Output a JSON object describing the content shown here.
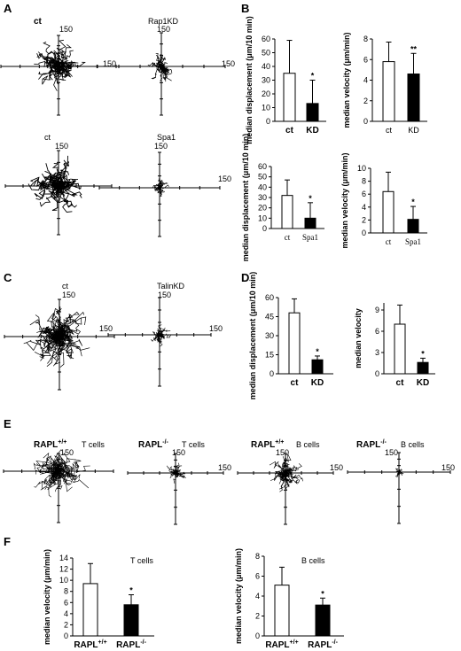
{
  "panels": {
    "A": {
      "letter": "A",
      "plots": [
        {
          "title": "ct",
          "axis_label_top": "150",
          "axis_label_right": "150"
        },
        {
          "title": "Rap1KD",
          "axis_label_top": "150",
          "axis_label_right": "150"
        },
        {
          "title": "ct",
          "axis_label_top": "150",
          "axis_label_right": ""
        },
        {
          "title": "Spa1",
          "axis_label_top": "150",
          "axis_label_right": "150"
        }
      ]
    },
    "B": {
      "letter": "B"
    },
    "C": {
      "letter": "C",
      "plots": [
        {
          "title": "ct",
          "axis_label_top": "150",
          "axis_label_right": "150"
        },
        {
          "title": "TalinKD",
          "axis_label_top": "150",
          "axis_label_right": "150"
        }
      ]
    },
    "D": {
      "letter": "D"
    },
    "E": {
      "letter": "E",
      "plots": [
        {
          "title_main": "RAPL",
          "title_sup": "+/+",
          "title_tail": "T cells",
          "axis_label_top": "150",
          "axis_label_right": ""
        },
        {
          "title_main": "RAPL",
          "title_sup": "-/-",
          "title_tail": "T cells",
          "axis_label_top": "150",
          "axis_label_right": "150"
        },
        {
          "title_main": "RAPL",
          "title_sup": "+/+",
          "title_tail": "B cells",
          "axis_label_top": "150",
          "axis_label_right": "150"
        },
        {
          "title_main": "RAPL",
          "title_sup": "-/-",
          "title_tail": "B cells",
          "axis_label_top": "150",
          "axis_label_right": "150"
        }
      ]
    },
    "F": {
      "letter": "F"
    }
  },
  "chart_data": [
    {
      "id": "B1",
      "type": "bar",
      "categories": [
        "ct",
        "KD"
      ],
      "values": [
        35,
        13
      ],
      "errors": [
        24,
        17
      ],
      "ylabel": "median displacement (μm/10 min)",
      "ylim": [
        0,
        60
      ],
      "yticks": [
        "0",
        "10",
        "20",
        "30",
        "40",
        "50",
        "60"
      ],
      "significance": [
        "",
        "*"
      ],
      "bar_colors": [
        "#ffffff",
        "#000000"
      ]
    },
    {
      "id": "B2",
      "type": "bar",
      "categories": [
        "ct",
        "KD"
      ],
      "values": [
        5.8,
        4.6
      ],
      "errors": [
        1.9,
        2.0
      ],
      "ylabel": "median velocity (μm/min)",
      "ylim": [
        0,
        8
      ],
      "yticks": [
        "0",
        "2",
        "4",
        "6",
        "8"
      ],
      "significance": [
        "",
        "**"
      ],
      "bar_colors": [
        "#ffffff",
        "#000000"
      ]
    },
    {
      "id": "B3",
      "type": "bar",
      "categories": [
        "ct",
        "Spa1"
      ],
      "values": [
        32,
        10
      ],
      "errors": [
        15,
        15
      ],
      "ylabel": "median displacement (μm/10 min)",
      "ylim": [
        0,
        60
      ],
      "yticks": [
        "0",
        "10",
        "20",
        "30",
        "40",
        "50",
        "60"
      ],
      "significance": [
        "",
        "*"
      ],
      "bar_colors": [
        "#ffffff",
        "#000000"
      ]
    },
    {
      "id": "B4",
      "type": "bar",
      "categories": [
        "ct",
        "Spa1"
      ],
      "values": [
        6.4,
        2.1
      ],
      "errors": [
        3.0,
        2.0
      ],
      "ylabel": "median velocity (μm/min)",
      "ylim": [
        0,
        10
      ],
      "yticks": [
        "0",
        "2",
        "4",
        "6",
        "8",
        "10"
      ],
      "significance": [
        "",
        "*"
      ],
      "bar_colors": [
        "#ffffff",
        "#000000"
      ]
    },
    {
      "id": "D1",
      "type": "bar",
      "categories": [
        "ct",
        "KD"
      ],
      "values": [
        48,
        11
      ],
      "errors": [
        11,
        3
      ],
      "ylabel": "median displacement (μm/10 min)",
      "ylim": [
        0,
        60
      ],
      "yticks": [
        "0",
        "15",
        "30",
        "45",
        "60"
      ],
      "significance": [
        "",
        "*"
      ],
      "bar_colors": [
        "#ffffff",
        "#000000"
      ]
    },
    {
      "id": "D2",
      "type": "bar",
      "categories": [
        "ct",
        "KD"
      ],
      "values": [
        7.0,
        1.6
      ],
      "errors": [
        2.7,
        0.6
      ],
      "ylabel": "median velocity",
      "ylim": [
        0,
        10
      ],
      "yticks": [
        "0",
        "3",
        "6",
        "9"
      ],
      "significance": [
        "",
        "*"
      ],
      "bar_colors": [
        "#ffffff",
        "#000000"
      ]
    },
    {
      "id": "F1",
      "type": "bar",
      "title": "T cells",
      "categories": [
        "RAPL+/+",
        "RAPL-/-"
      ],
      "values": [
        9.4,
        5.6
      ],
      "errors": [
        3.6,
        1.8
      ],
      "ylabel": "median velocity (μm/min)",
      "ylim": [
        0,
        14
      ],
      "yticks": [
        "0",
        "2",
        "4",
        "6",
        "8",
        "10",
        "12",
        "14"
      ],
      "significance": [
        "",
        "*"
      ],
      "bar_colors": [
        "#ffffff",
        "#000000"
      ]
    },
    {
      "id": "F2",
      "type": "bar",
      "title": "B cells",
      "categories": [
        "RAPL+/+",
        "RAPL-/-"
      ],
      "values": [
        5.1,
        3.1
      ],
      "errors": [
        1.8,
        0.7
      ],
      "ylabel": "median velocity (μm/min)",
      "ylim": [
        0,
        8
      ],
      "yticks": [
        "0",
        "2",
        "4",
        "6",
        "8"
      ],
      "significance": [
        "",
        "*"
      ],
      "bar_colors": [
        "#ffffff",
        "#000000"
      ]
    }
  ]
}
